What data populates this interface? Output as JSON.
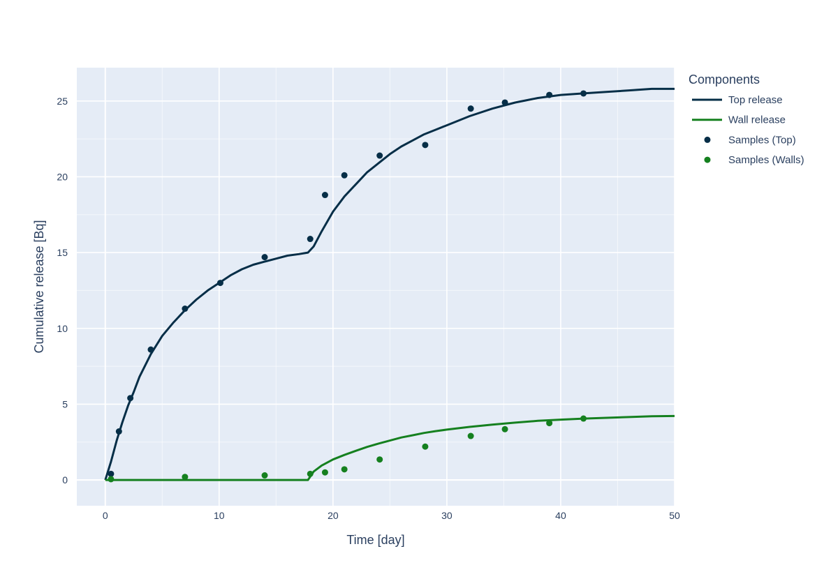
{
  "chart_data": {
    "type": "line",
    "xlabel": "Time [day]",
    "ylabel": "Cumulative release [Bq]",
    "xlim": [
      -2.5,
      50
    ],
    "ylim": [
      -1.7,
      27.2
    ],
    "xticks": [
      0,
      10,
      20,
      30,
      40,
      50
    ],
    "yticks": [
      0,
      5,
      10,
      15,
      20,
      25
    ],
    "grid": true,
    "legend": {
      "title": "Components",
      "placement": "right",
      "entries": [
        "Top release",
        "Wall release",
        "Samples (Top)",
        "Samples (Walls)"
      ]
    },
    "colors": {
      "top": "#062e47",
      "walls": "#15801f",
      "plot_bg": "#e5ecf6",
      "grid": "#ffffff"
    },
    "series": [
      {
        "name": "Top release",
        "kind": "line",
        "color": "#062e47",
        "x": [
          0,
          0.5,
          1,
          1.5,
          2,
          2.5,
          3,
          4,
          5,
          6,
          7,
          8,
          9,
          10,
          11,
          12,
          13,
          14,
          15,
          16,
          17,
          17.8,
          18.3,
          19,
          20,
          21,
          22,
          23,
          24,
          25,
          26,
          27,
          28,
          29,
          30,
          32,
          34,
          36,
          38,
          40,
          42,
          44,
          46,
          48,
          50
        ],
        "y": [
          0,
          1.2,
          2.6,
          3.8,
          4.9,
          5.8,
          6.8,
          8.3,
          9.5,
          10.4,
          11.2,
          11.9,
          12.5,
          13.0,
          13.5,
          13.9,
          14.2,
          14.4,
          14.6,
          14.8,
          14.9,
          15.0,
          15.4,
          16.4,
          17.7,
          18.7,
          19.5,
          20.3,
          20.9,
          21.5,
          22.0,
          22.4,
          22.8,
          23.1,
          23.4,
          24.0,
          24.5,
          24.9,
          25.2,
          25.4,
          25.5,
          25.6,
          25.7,
          25.8,
          25.8
        ]
      },
      {
        "name": "Wall release",
        "kind": "line",
        "color": "#15801f",
        "x": [
          0,
          5,
          10,
          15,
          17.8,
          18.3,
          19,
          20,
          21,
          22,
          23,
          24,
          25,
          26,
          27,
          28,
          29,
          30,
          32,
          34,
          36,
          38,
          40,
          42,
          44,
          46,
          48,
          50
        ],
        "y": [
          0,
          0,
          0,
          0,
          0,
          0.55,
          0.95,
          1.35,
          1.65,
          1.92,
          2.18,
          2.4,
          2.6,
          2.8,
          2.95,
          3.1,
          3.22,
          3.32,
          3.5,
          3.65,
          3.78,
          3.9,
          3.98,
          4.05,
          4.1,
          4.15,
          4.2,
          4.22
        ]
      },
      {
        "name": "Samples (Top)",
        "kind": "scatter",
        "color": "#062e47",
        "x": [
          0.5,
          1.2,
          2.2,
          4.0,
          7.0,
          10.1,
          14.0,
          18.0,
          19.3,
          21.0,
          24.1,
          28.1,
          32.1,
          35.1,
          39.0,
          42.0
        ],
        "y": [
          0.4,
          3.2,
          5.4,
          8.6,
          11.3,
          13.0,
          14.7,
          15.9,
          18.8,
          20.1,
          21.4,
          22.1,
          24.5,
          24.9,
          25.4,
          25.5
        ]
      },
      {
        "name": "Samples (Walls)",
        "kind": "scatter",
        "color": "#15801f",
        "x": [
          0.5,
          7.0,
          14.0,
          18.0,
          19.3,
          21.0,
          24.1,
          28.1,
          32.1,
          35.1,
          39.0,
          42.0
        ],
        "y": [
          0.05,
          0.2,
          0.3,
          0.4,
          0.5,
          0.7,
          1.35,
          2.2,
          2.9,
          3.35,
          3.75,
          4.05
        ]
      }
    ]
  }
}
